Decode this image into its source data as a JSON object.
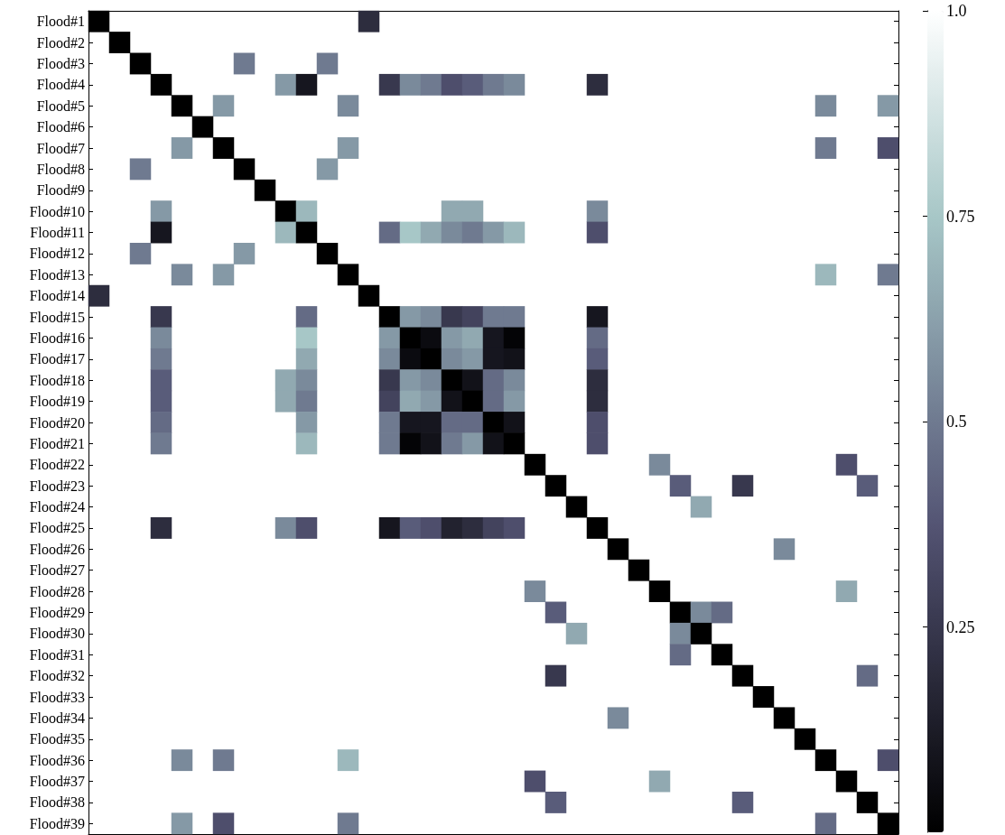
{
  "chart_data": {
    "type": "heatmap",
    "categories": [
      null,
      null,
      null,
      null,
      null,
      null,
      null,
      null,
      null,
      null,
      null,
      null,
      null,
      null,
      null,
      null,
      null,
      null,
      null,
      null,
      null,
      null,
      null,
      null,
      null,
      null,
      null,
      null,
      null,
      null,
      null,
      null,
      null,
      null,
      null,
      null,
      null,
      null,
      null
    ],
    "y_categories": [
      "Flood#1",
      "Flood#2",
      "Flood#3",
      "Flood#4",
      "Flood#5",
      "Flood#6",
      "Flood#7",
      "Flood#8",
      "Flood#9",
      "Flood#10",
      "Flood#11",
      "Flood#12",
      "Flood#13",
      "Flood#14",
      "Flood#15",
      "Flood#16",
      "Flood#17",
      "Flood#18",
      "Flood#19",
      "Flood#20",
      "Flood#21",
      "Flood#22",
      "Flood#23",
      "Flood#24",
      "Flood#25",
      "Flood#26",
      "Flood#27",
      "Flood#28",
      "Flood#29",
      "Flood#30",
      "Flood#31",
      "Flood#32",
      "Flood#33",
      "Flood#34",
      "Flood#35",
      "Flood#36",
      "Flood#37",
      "Flood#38",
      "Flood#39"
    ],
    "cells": [
      [
        0,
        null,
        null,
        null,
        null,
        null,
        null,
        null,
        null,
        null,
        null,
        null,
        null,
        0.2,
        null,
        null,
        null,
        null,
        null,
        null,
        null,
        null,
        null,
        null,
        null,
        null,
        null,
        null,
        null,
        null,
        null,
        null,
        null,
        null,
        null,
        null,
        null,
        null,
        null
      ],
      [
        null,
        0,
        null,
        null,
        null,
        null,
        null,
        null,
        null,
        null,
        null,
        null,
        null,
        null,
        null,
        null,
        null,
        null,
        null,
        null,
        null,
        null,
        null,
        null,
        null,
        null,
        null,
        null,
        null,
        null,
        null,
        null,
        null,
        null,
        null,
        null,
        null,
        null,
        null
      ],
      [
        null,
        null,
        0,
        null,
        null,
        null,
        null,
        0.5,
        null,
        null,
        null,
        0.5,
        null,
        null,
        null,
        null,
        null,
        null,
        null,
        null,
        null,
        null,
        null,
        null,
        null,
        null,
        null,
        null,
        null,
        null,
        null,
        null,
        null,
        null,
        null,
        null,
        null,
        null,
        null
      ],
      [
        null,
        null,
        null,
        0,
        null,
        null,
        null,
        null,
        null,
        0.6,
        0.1,
        null,
        null,
        null,
        0.25,
        0.55,
        0.5,
        0.35,
        0.4,
        0.5,
        0.55,
        null,
        null,
        null,
        0.2,
        null,
        null,
        null,
        null,
        null,
        null,
        null,
        null,
        null,
        null,
        null,
        null,
        null,
        null
      ],
      [
        null,
        null,
        null,
        null,
        0,
        null,
        0.6,
        null,
        null,
        null,
        null,
        null,
        0.55,
        null,
        null,
        null,
        null,
        null,
        null,
        null,
        null,
        null,
        null,
        null,
        null,
        null,
        null,
        null,
        null,
        null,
        null,
        null,
        null,
        null,
        null,
        0.55,
        null,
        null,
        0.6
      ],
      [
        null,
        null,
        null,
        null,
        null,
        0,
        null,
        null,
        null,
        null,
        null,
        null,
        null,
        null,
        null,
        null,
        null,
        null,
        null,
        null,
        null,
        null,
        null,
        null,
        null,
        null,
        null,
        null,
        null,
        null,
        null,
        null,
        null,
        null,
        null,
        null,
        null,
        null,
        null
      ],
      [
        null,
        null,
        null,
        null,
        0.6,
        null,
        0,
        null,
        null,
        null,
        null,
        null,
        0.6,
        null,
        null,
        null,
        null,
        null,
        null,
        null,
        null,
        null,
        null,
        null,
        null,
        null,
        null,
        null,
        null,
        null,
        null,
        null,
        null,
        null,
        null,
        0.5,
        null,
        null,
        0.35
      ],
      [
        null,
        null,
        0.5,
        null,
        null,
        null,
        null,
        0,
        null,
        null,
        null,
        0.6,
        null,
        null,
        null,
        null,
        null,
        null,
        null,
        null,
        null,
        null,
        null,
        null,
        null,
        null,
        null,
        null,
        null,
        null,
        null,
        null,
        null,
        null,
        null,
        null,
        null,
        null,
        null
      ],
      [
        null,
        null,
        null,
        null,
        null,
        null,
        null,
        null,
        0,
        null,
        null,
        null,
        null,
        null,
        null,
        null,
        null,
        null,
        null,
        null,
        null,
        null,
        null,
        null,
        null,
        null,
        null,
        null,
        null,
        null,
        null,
        null,
        null,
        null,
        null,
        null,
        null,
        null,
        null
      ],
      [
        null,
        null,
        null,
        0.6,
        null,
        null,
        null,
        null,
        null,
        0,
        0.7,
        null,
        null,
        null,
        null,
        null,
        null,
        0.65,
        0.65,
        null,
        null,
        null,
        null,
        null,
        0.55,
        null,
        null,
        null,
        null,
        null,
        null,
        null,
        null,
        null,
        null,
        null,
        null,
        null,
        null
      ],
      [
        null,
        null,
        null,
        0.1,
        null,
        null,
        null,
        null,
        null,
        0.7,
        0,
        null,
        null,
        null,
        0.45,
        0.75,
        0.65,
        0.55,
        0.5,
        0.6,
        0.7,
        null,
        null,
        null,
        0.35,
        null,
        null,
        null,
        null,
        null,
        null,
        null,
        null,
        null,
        null,
        null,
        null,
        null,
        null
      ],
      [
        null,
        null,
        0.5,
        null,
        null,
        null,
        null,
        0.6,
        null,
        null,
        null,
        0,
        null,
        null,
        null,
        null,
        null,
        null,
        null,
        null,
        null,
        null,
        null,
        null,
        null,
        null,
        null,
        null,
        null,
        null,
        null,
        null,
        null,
        null,
        null,
        null,
        null,
        null,
        null
      ],
      [
        null,
        null,
        null,
        null,
        0.55,
        null,
        0.6,
        null,
        null,
        null,
        null,
        null,
        0,
        null,
        null,
        null,
        null,
        null,
        null,
        null,
        null,
        null,
        null,
        null,
        null,
        null,
        null,
        null,
        null,
        null,
        null,
        null,
        null,
        null,
        null,
        0.7,
        null,
        null,
        0.5
      ],
      [
        0.2,
        null,
        null,
        null,
        null,
        null,
        null,
        null,
        null,
        null,
        null,
        null,
        null,
        0,
        null,
        null,
        null,
        null,
        null,
        null,
        null,
        null,
        null,
        null,
        null,
        null,
        null,
        null,
        null,
        null,
        null,
        null,
        null,
        null,
        null,
        null,
        null,
        null,
        null
      ],
      [
        null,
        null,
        null,
        0.25,
        null,
        null,
        null,
        null,
        null,
        null,
        0.45,
        null,
        null,
        null,
        0,
        0.6,
        0.55,
        0.25,
        0.3,
        0.5,
        0.5,
        null,
        null,
        null,
        0.1,
        null,
        null,
        null,
        null,
        null,
        null,
        null,
        null,
        null,
        null,
        null,
        null,
        null,
        null
      ],
      [
        null,
        null,
        null,
        0.55,
        null,
        null,
        null,
        null,
        null,
        null,
        0.75,
        null,
        null,
        null,
        0.6,
        0,
        0.05,
        0.6,
        0.65,
        0.1,
        0.02,
        null,
        null,
        null,
        0.45,
        null,
        null,
        null,
        null,
        null,
        null,
        null,
        null,
        null,
        null,
        null,
        null,
        null,
        null
      ],
      [
        null,
        null,
        null,
        0.5,
        null,
        null,
        null,
        null,
        null,
        null,
        0.65,
        null,
        null,
        null,
        0.55,
        0.05,
        0,
        0.55,
        0.6,
        0.1,
        0.08,
        null,
        null,
        null,
        0.4,
        null,
        null,
        null,
        null,
        null,
        null,
        null,
        null,
        null,
        null,
        null,
        null,
        null,
        null
      ],
      [
        null,
        null,
        null,
        0.4,
        null,
        null,
        null,
        null,
        null,
        0.65,
        0.55,
        null,
        null,
        null,
        0.25,
        0.6,
        0.55,
        0,
        0.08,
        0.45,
        0.55,
        null,
        null,
        null,
        0.2,
        null,
        null,
        null,
        null,
        null,
        null,
        null,
        null,
        null,
        null,
        null,
        null,
        null,
        null
      ],
      [
        null,
        null,
        null,
        0.4,
        null,
        null,
        null,
        null,
        null,
        0.65,
        0.5,
        null,
        null,
        null,
        0.3,
        0.65,
        0.6,
        0.08,
        0,
        0.45,
        0.6,
        null,
        null,
        null,
        0.2,
        null,
        null,
        null,
        null,
        null,
        null,
        null,
        null,
        null,
        null,
        null,
        null,
        null,
        null
      ],
      [
        null,
        null,
        null,
        0.45,
        null,
        null,
        null,
        null,
        null,
        null,
        0.6,
        null,
        null,
        null,
        0.5,
        0.1,
        0.1,
        0.45,
        0.45,
        0,
        0.08,
        null,
        null,
        null,
        0.35,
        null,
        null,
        null,
        null,
        null,
        null,
        null,
        null,
        null,
        null,
        null,
        null,
        null,
        null
      ],
      [
        null,
        null,
        null,
        0.5,
        null,
        null,
        null,
        null,
        null,
        null,
        0.7,
        null,
        null,
        null,
        0.5,
        0.02,
        0.08,
        0.5,
        0.6,
        0.08,
        0,
        null,
        null,
        null,
        0.35,
        null,
        null,
        null,
        null,
        null,
        null,
        null,
        null,
        null,
        null,
        null,
        null,
        null,
        null
      ],
      [
        null,
        null,
        null,
        null,
        null,
        null,
        null,
        null,
        null,
        null,
        null,
        null,
        null,
        null,
        null,
        null,
        null,
        null,
        null,
        null,
        null,
        0,
        null,
        null,
        null,
        null,
        null,
        0.55,
        null,
        null,
        null,
        null,
        null,
        null,
        null,
        null,
        0.35,
        null,
        null
      ],
      [
        null,
        null,
        null,
        null,
        null,
        null,
        null,
        null,
        null,
        null,
        null,
        null,
        null,
        null,
        null,
        null,
        null,
        null,
        null,
        null,
        null,
        null,
        0,
        null,
        null,
        null,
        null,
        null,
        0.4,
        null,
        null,
        0.25,
        null,
        null,
        null,
        null,
        null,
        0.4,
        null
      ],
      [
        null,
        null,
        null,
        null,
        null,
        null,
        null,
        null,
        null,
        null,
        null,
        null,
        null,
        null,
        null,
        null,
        null,
        null,
        null,
        null,
        null,
        null,
        null,
        0,
        null,
        null,
        null,
        null,
        null,
        0.65,
        null,
        null,
        null,
        null,
        null,
        null,
        null,
        null,
        null
      ],
      [
        null,
        null,
        null,
        0.2,
        null,
        null,
        null,
        null,
        null,
        0.55,
        0.35,
        null,
        null,
        null,
        0.1,
        0.4,
        0.35,
        0.15,
        0.2,
        0.3,
        0.35,
        null,
        null,
        null,
        0,
        null,
        null,
        null,
        null,
        null,
        null,
        null,
        null,
        null,
        null,
        null,
        null,
        null,
        null
      ],
      [
        null,
        null,
        null,
        null,
        null,
        null,
        null,
        null,
        null,
        null,
        null,
        null,
        null,
        null,
        null,
        null,
        null,
        null,
        null,
        null,
        null,
        null,
        null,
        null,
        null,
        0,
        null,
        null,
        null,
        null,
        null,
        null,
        null,
        0.55,
        null,
        null,
        null,
        null,
        null
      ],
      [
        null,
        null,
        null,
        null,
        null,
        null,
        null,
        null,
        null,
        null,
        null,
        null,
        null,
        null,
        null,
        null,
        null,
        null,
        null,
        null,
        null,
        null,
        null,
        null,
        null,
        null,
        0,
        null,
        null,
        null,
        null,
        null,
        null,
        null,
        null,
        null,
        null,
        null,
        null
      ],
      [
        null,
        null,
        null,
        null,
        null,
        null,
        null,
        null,
        null,
        null,
        null,
        null,
        null,
        null,
        null,
        null,
        null,
        null,
        null,
        null,
        null,
        0.55,
        null,
        null,
        null,
        null,
        null,
        0,
        null,
        null,
        null,
        null,
        null,
        null,
        null,
        null,
        0.65,
        null,
        null
      ],
      [
        null,
        null,
        null,
        null,
        null,
        null,
        null,
        null,
        null,
        null,
        null,
        null,
        null,
        null,
        null,
        null,
        null,
        null,
        null,
        null,
        null,
        null,
        0.4,
        null,
        null,
        null,
        null,
        null,
        0,
        0.55,
        0.45,
        null,
        null,
        null,
        null,
        null,
        null,
        null,
        null
      ],
      [
        null,
        null,
        null,
        null,
        null,
        null,
        null,
        null,
        null,
        null,
        null,
        null,
        null,
        null,
        null,
        null,
        null,
        null,
        null,
        null,
        null,
        null,
        null,
        0.65,
        null,
        null,
        null,
        null,
        0.55,
        0,
        null,
        null,
        null,
        null,
        null,
        null,
        null,
        null,
        null
      ],
      [
        null,
        null,
        null,
        null,
        null,
        null,
        null,
        null,
        null,
        null,
        null,
        null,
        null,
        null,
        null,
        null,
        null,
        null,
        null,
        null,
        null,
        null,
        null,
        null,
        null,
        null,
        null,
        null,
        0.45,
        null,
        0,
        null,
        null,
        null,
        null,
        null,
        null,
        null,
        null
      ],
      [
        null,
        null,
        null,
        null,
        null,
        null,
        null,
        null,
        null,
        null,
        null,
        null,
        null,
        null,
        null,
        null,
        null,
        null,
        null,
        null,
        null,
        null,
        0.25,
        null,
        null,
        null,
        null,
        null,
        null,
        null,
        null,
        0,
        null,
        null,
        null,
        null,
        null,
        0.45,
        null
      ],
      [
        null,
        null,
        null,
        null,
        null,
        null,
        null,
        null,
        null,
        null,
        null,
        null,
        null,
        null,
        null,
        null,
        null,
        null,
        null,
        null,
        null,
        null,
        null,
        null,
        null,
        null,
        null,
        null,
        null,
        null,
        null,
        null,
        0,
        null,
        null,
        null,
        null,
        null,
        null
      ],
      [
        null,
        null,
        null,
        null,
        null,
        null,
        null,
        null,
        null,
        null,
        null,
        null,
        null,
        null,
        null,
        null,
        null,
        null,
        null,
        null,
        null,
        null,
        null,
        null,
        null,
        0.55,
        null,
        null,
        null,
        null,
        null,
        null,
        null,
        0,
        null,
        null,
        null,
        null,
        null
      ],
      [
        null,
        null,
        null,
        null,
        null,
        null,
        null,
        null,
        null,
        null,
        null,
        null,
        null,
        null,
        null,
        null,
        null,
        null,
        null,
        null,
        null,
        null,
        null,
        null,
        null,
        null,
        null,
        null,
        null,
        null,
        null,
        null,
        null,
        null,
        0,
        null,
        null,
        null,
        null
      ],
      [
        null,
        null,
        null,
        null,
        0.55,
        null,
        0.5,
        null,
        null,
        null,
        null,
        null,
        0.7,
        null,
        null,
        null,
        null,
        null,
        null,
        null,
        null,
        null,
        null,
        null,
        null,
        null,
        null,
        null,
        null,
        null,
        null,
        null,
        null,
        null,
        null,
        0,
        null,
        null,
        0.35
      ],
      [
        null,
        null,
        null,
        null,
        null,
        null,
        null,
        null,
        null,
        null,
        null,
        null,
        null,
        null,
        null,
        null,
        null,
        null,
        null,
        null,
        null,
        0.35,
        null,
        null,
        null,
        null,
        null,
        0.65,
        null,
        null,
        null,
        null,
        null,
        null,
        null,
        null,
        0,
        null,
        null
      ],
      [
        null,
        null,
        null,
        null,
        null,
        null,
        null,
        null,
        null,
        null,
        null,
        null,
        null,
        null,
        null,
        null,
        null,
        null,
        null,
        null,
        null,
        null,
        0.4,
        null,
        null,
        null,
        null,
        null,
        null,
        null,
        null,
        0.4,
        null,
        null,
        null,
        null,
        null,
        0,
        null
      ],
      [
        null,
        null,
        null,
        null,
        0.6,
        null,
        0.35,
        null,
        null,
        null,
        null,
        null,
        0.5,
        null,
        null,
        null,
        null,
        null,
        null,
        null,
        null,
        null,
        null,
        null,
        null,
        null,
        null,
        null,
        null,
        null,
        null,
        null,
        null,
        null,
        null,
        0.45,
        null,
        null,
        0
      ]
    ],
    "clim": [
      0,
      1
    ],
    "cticks": [
      0.25,
      0.5,
      0.75,
      {
        "value": 1,
        "label": "1.0"
      }
    ],
    "tick_labels": "y"
  }
}
